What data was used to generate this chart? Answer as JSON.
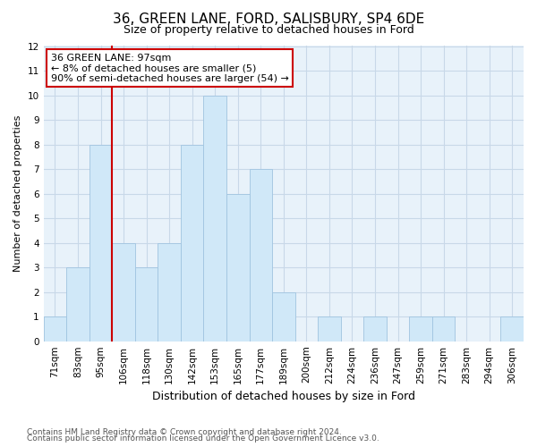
{
  "title": "36, GREEN LANE, FORD, SALISBURY, SP4 6DE",
  "subtitle": "Size of property relative to detached houses in Ford",
  "xlabel": "Distribution of detached houses by size in Ford",
  "ylabel": "Number of detached properties",
  "footnote1": "Contains HM Land Registry data © Crown copyright and database right 2024.",
  "footnote2": "Contains public sector information licensed under the Open Government Licence v3.0.",
  "categories": [
    "71sqm",
    "83sqm",
    "95sqm",
    "106sqm",
    "118sqm",
    "130sqm",
    "142sqm",
    "153sqm",
    "165sqm",
    "177sqm",
    "189sqm",
    "200sqm",
    "212sqm",
    "224sqm",
    "236sqm",
    "247sqm",
    "259sqm",
    "271sqm",
    "283sqm",
    "294sqm",
    "306sqm"
  ],
  "values": [
    1,
    3,
    8,
    4,
    3,
    4,
    8,
    10,
    6,
    7,
    2,
    0,
    1,
    0,
    1,
    0,
    1,
    1,
    0,
    0,
    1
  ],
  "bar_color": "#d0e8f8",
  "bar_edge_color": "#a0c4e0",
  "ylim": [
    0,
    12
  ],
  "yticks": [
    0,
    1,
    2,
    3,
    4,
    5,
    6,
    7,
    8,
    9,
    10,
    11,
    12
  ],
  "property_line_x": 2.5,
  "annotation_line1": "36 GREEN LANE: 97sqm",
  "annotation_line2": "← 8% of detached houses are smaller (5)",
  "annotation_line3": "90% of semi-detached houses are larger (54) →",
  "annotation_box_color": "#ffffff",
  "annotation_border_color": "#cc0000",
  "vline_color": "#cc0000",
  "grid_color": "#c8d8e8",
  "background_color": "#e8f2fa",
  "title_fontsize": 11,
  "subtitle_fontsize": 9,
  "xlabel_fontsize": 9,
  "ylabel_fontsize": 8,
  "tick_fontsize": 7.5,
  "annotation_fontsize": 8,
  "footnote_fontsize": 6.5
}
